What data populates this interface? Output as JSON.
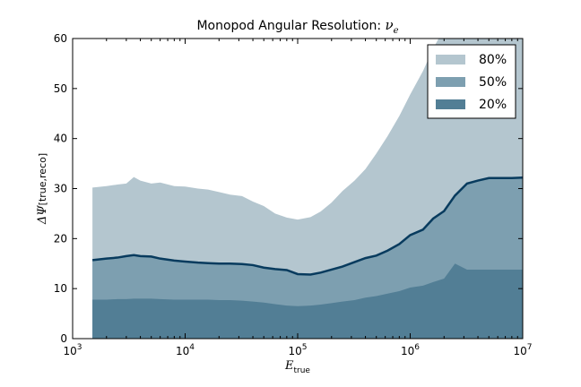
{
  "chart_data": {
    "type": "area",
    "title": "Monopod Angular Resolution: ",
    "title_math": "ν",
    "title_math_sub": "e",
    "xlabel": "E",
    "xlabel_sub": "true",
    "ylabel": "ΔΨ",
    "ylabel_sub": "[true,reco]",
    "xscale": "log",
    "xlim": [
      1000,
      10000000
    ],
    "ylim": [
      0,
      60
    ],
    "x_ticks": [
      {
        "base": "10",
        "exp": "3",
        "value": 1000
      },
      {
        "base": "10",
        "exp": "4",
        "value": 10000
      },
      {
        "base": "10",
        "exp": "5",
        "value": 100000
      },
      {
        "base": "10",
        "exp": "6",
        "value": 1000000
      },
      {
        "base": "10",
        "exp": "7",
        "value": 10000000
      }
    ],
    "y_ticks": [
      {
        "label": "0",
        "value": 0
      },
      {
        "label": "10",
        "value": 10
      },
      {
        "label": "20",
        "value": 20
      },
      {
        "label": "30",
        "value": 30
      },
      {
        "label": "40",
        "value": 40
      },
      {
        "label": "50",
        "value": 50
      },
      {
        "label": "60",
        "value": 60
      }
    ],
    "legend_position": "top-right",
    "x": [
      1500,
      2000,
      2500,
      3000,
      3500,
      4000,
      5000,
      6000,
      8000,
      10000,
      13000,
      16000,
      20000,
      25000,
      32000,
      40000,
      50000,
      63000,
      80000,
      100000,
      130000,
      160000,
      200000,
      250000,
      320000,
      400000,
      500000,
      630000,
      800000,
      1000000,
      1300000,
      1600000,
      2000000,
      2500000,
      3200000,
      4000000,
      5000000,
      6300000,
      8000000,
      10000000
    ],
    "series": [
      {
        "name": "80%",
        "color": "#b4c6cf",
        "values": [
          30.2,
          30.5,
          30.8,
          31.0,
          32.3,
          31.6,
          31.0,
          31.2,
          30.5,
          30.4,
          30.0,
          29.8,
          29.3,
          28.8,
          28.5,
          27.4,
          26.5,
          25.0,
          24.2,
          23.8,
          24.3,
          25.4,
          27.2,
          29.5,
          31.6,
          33.9,
          37.0,
          40.5,
          44.5,
          48.8,
          53.5,
          58.0,
          62.0,
          64.0,
          65.0,
          65.0,
          65.0,
          65.0,
          65.0,
          65.0
        ]
      },
      {
        "name": "50%",
        "color": "#7d9fb0",
        "values": [
          15.7,
          16.0,
          16.2,
          16.5,
          16.7,
          16.5,
          16.4,
          16.0,
          15.6,
          15.4,
          15.2,
          15.1,
          15.0,
          15.0,
          14.9,
          14.7,
          14.2,
          13.9,
          13.7,
          12.9,
          12.8,
          13.2,
          13.8,
          14.4,
          15.3,
          16.1,
          16.6,
          17.6,
          18.9,
          20.7,
          21.8,
          24.0,
          25.5,
          28.6,
          31.0,
          31.6,
          32.1,
          32.1,
          32.1,
          32.2
        ]
      },
      {
        "name": "20%",
        "color": "#527e95",
        "values": [
          7.8,
          7.8,
          7.9,
          7.9,
          8.0,
          8.0,
          8.0,
          7.9,
          7.8,
          7.8,
          7.8,
          7.8,
          7.7,
          7.7,
          7.6,
          7.4,
          7.2,
          6.9,
          6.6,
          6.5,
          6.6,
          6.8,
          7.1,
          7.4,
          7.7,
          8.2,
          8.5,
          9.0,
          9.5,
          10.2,
          10.6,
          11.3,
          12.0,
          15.0,
          13.8,
          13.8,
          13.8,
          13.8,
          13.8,
          13.8
        ]
      }
    ],
    "median_line_color": "#083b5e"
  }
}
